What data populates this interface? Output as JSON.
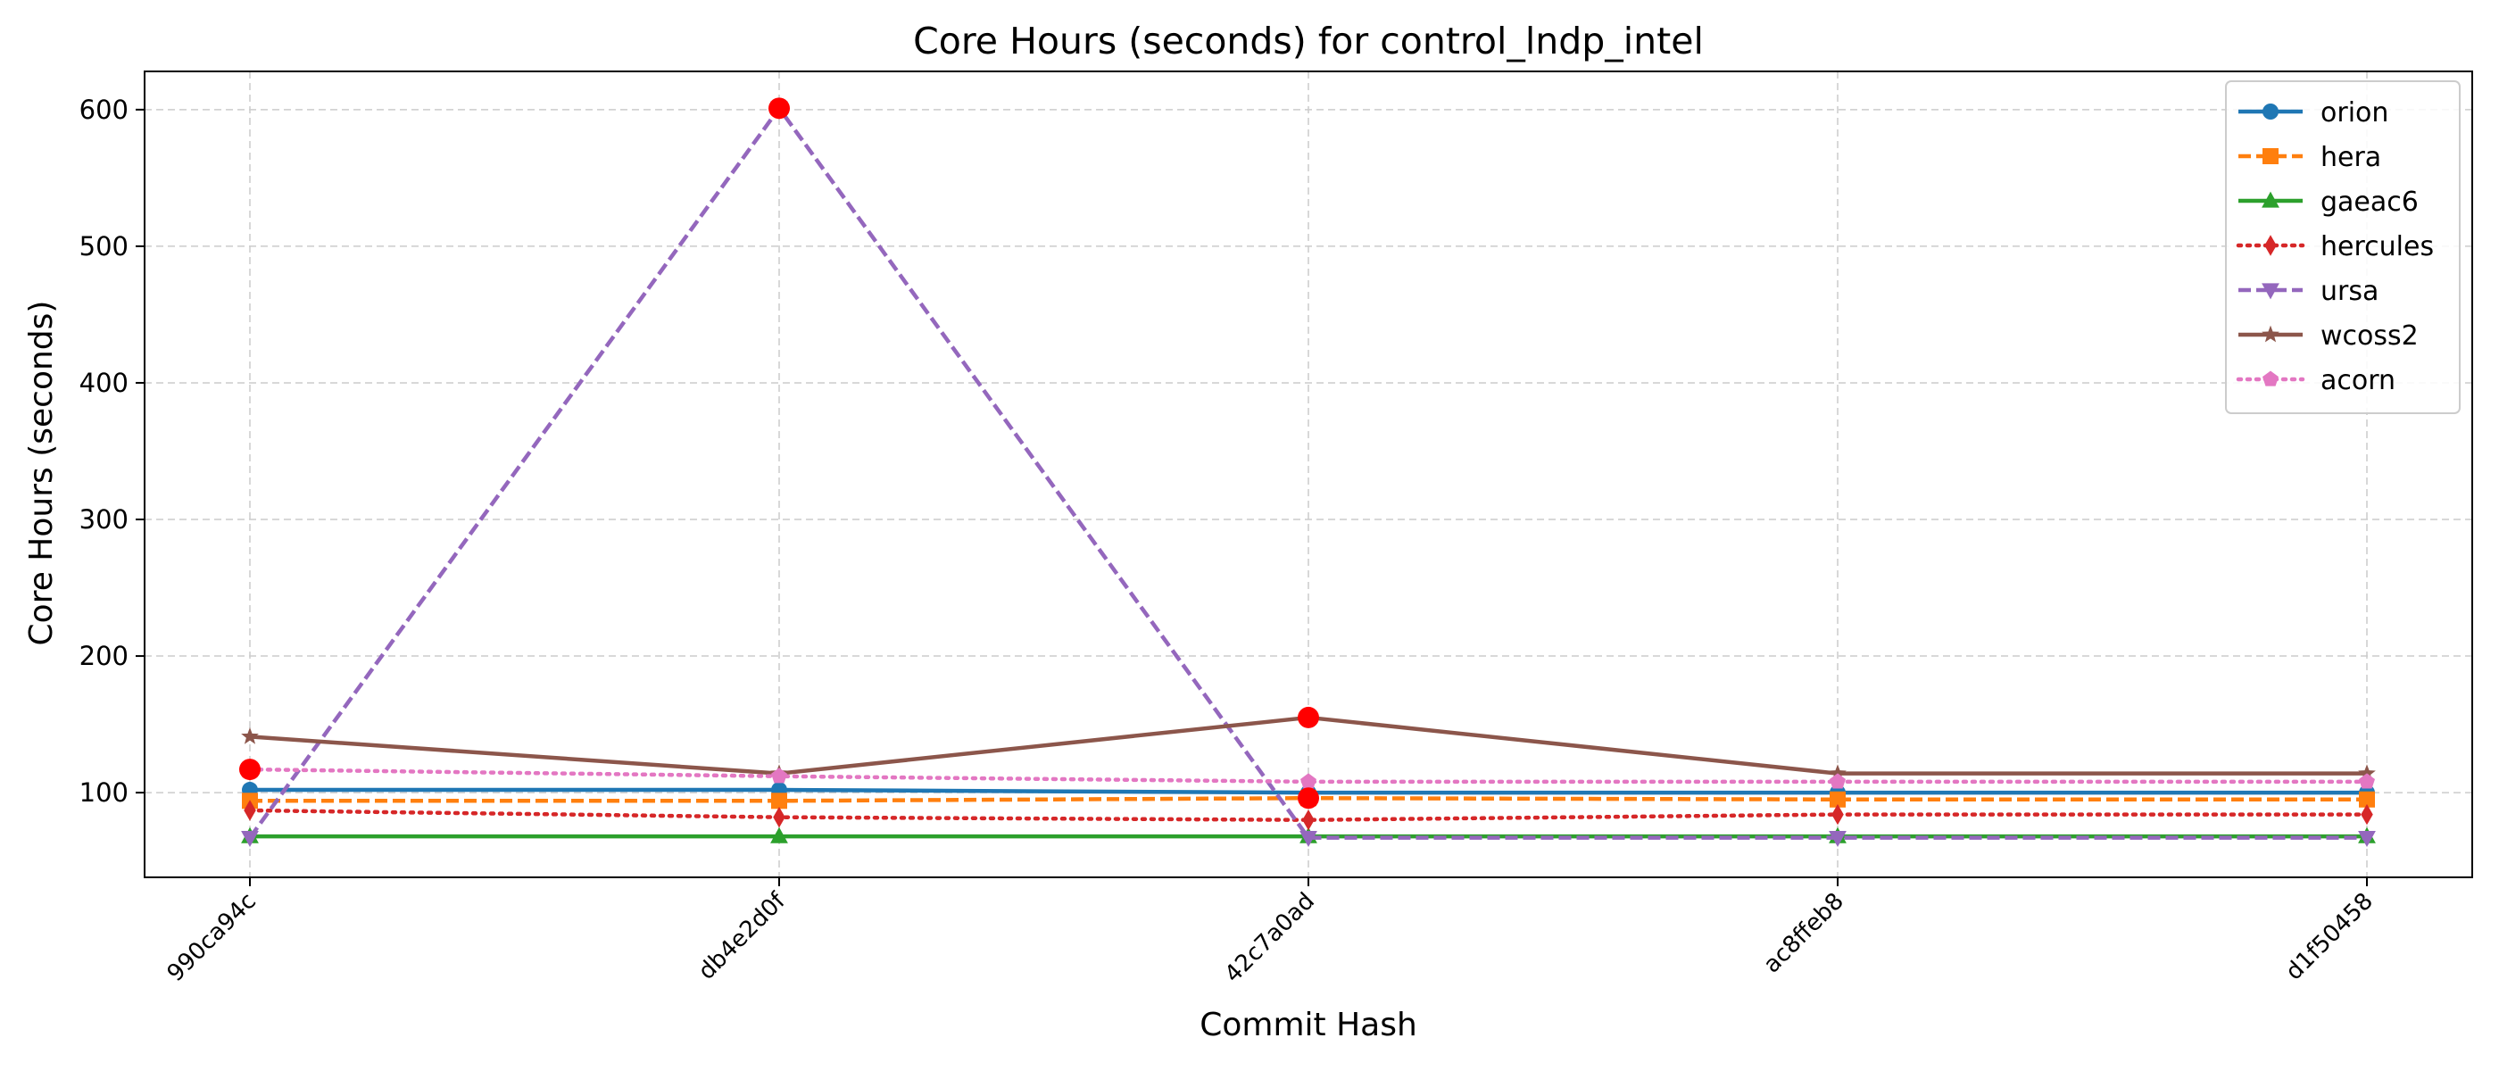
{
  "chart_data": {
    "type": "line",
    "title": "Core Hours (seconds) for control_lndp_intel",
    "xlabel": "Commit Hash",
    "ylabel": "Core Hours (seconds)",
    "categories": [
      "990ca94c",
      "db4e2d0f",
      "42c7a0ad",
      "ac8ffeb8",
      "d1f50458"
    ],
    "ylim": [
      38,
      628
    ],
    "yticks": [
      100,
      200,
      300,
      400,
      500,
      600
    ],
    "grid": true,
    "legend_position": "top-right",
    "series": [
      {
        "name": "orion",
        "values": [
          102,
          102,
          100,
          100,
          100
        ],
        "color": "#1f77b4",
        "line_style": "solid",
        "marker": "circle"
      },
      {
        "name": "hera",
        "values": [
          94,
          94,
          96,
          95,
          95
        ],
        "color": "#ff7f0e",
        "line_style": "dashed",
        "marker": "square"
      },
      {
        "name": "gaeac6",
        "values": [
          68,
          68,
          68,
          68,
          68
        ],
        "color": "#2ca02c",
        "line_style": "solid",
        "marker": "triangle-up"
      },
      {
        "name": "hercules",
        "values": [
          87,
          82,
          80,
          84,
          84
        ],
        "color": "#d62728",
        "line_style": "dotted",
        "marker": "diamond"
      },
      {
        "name": "ursa",
        "values": [
          67,
          601,
          67,
          67,
          67
        ],
        "color": "#9467bd",
        "line_style": "dashed",
        "marker": "triangle-down"
      },
      {
        "name": "wcoss2",
        "values": [
          141,
          114,
          155,
          114,
          114
        ],
        "color": "#8c564b",
        "line_style": "solid",
        "marker": "star"
      },
      {
        "name": "acorn",
        "values": [
          117,
          112,
          108,
          108,
          108
        ],
        "color": "#e377c2",
        "line_style": "dotted",
        "marker": "pentagon"
      }
    ],
    "highlights": [
      {
        "category": "990ca94c",
        "value": 117
      },
      {
        "category": "db4e2d0f",
        "value": 601
      },
      {
        "category": "42c7a0ad",
        "value": 155
      },
      {
        "category": "42c7a0ad",
        "value": 96
      }
    ],
    "highlight_color": "#ff0000"
  }
}
